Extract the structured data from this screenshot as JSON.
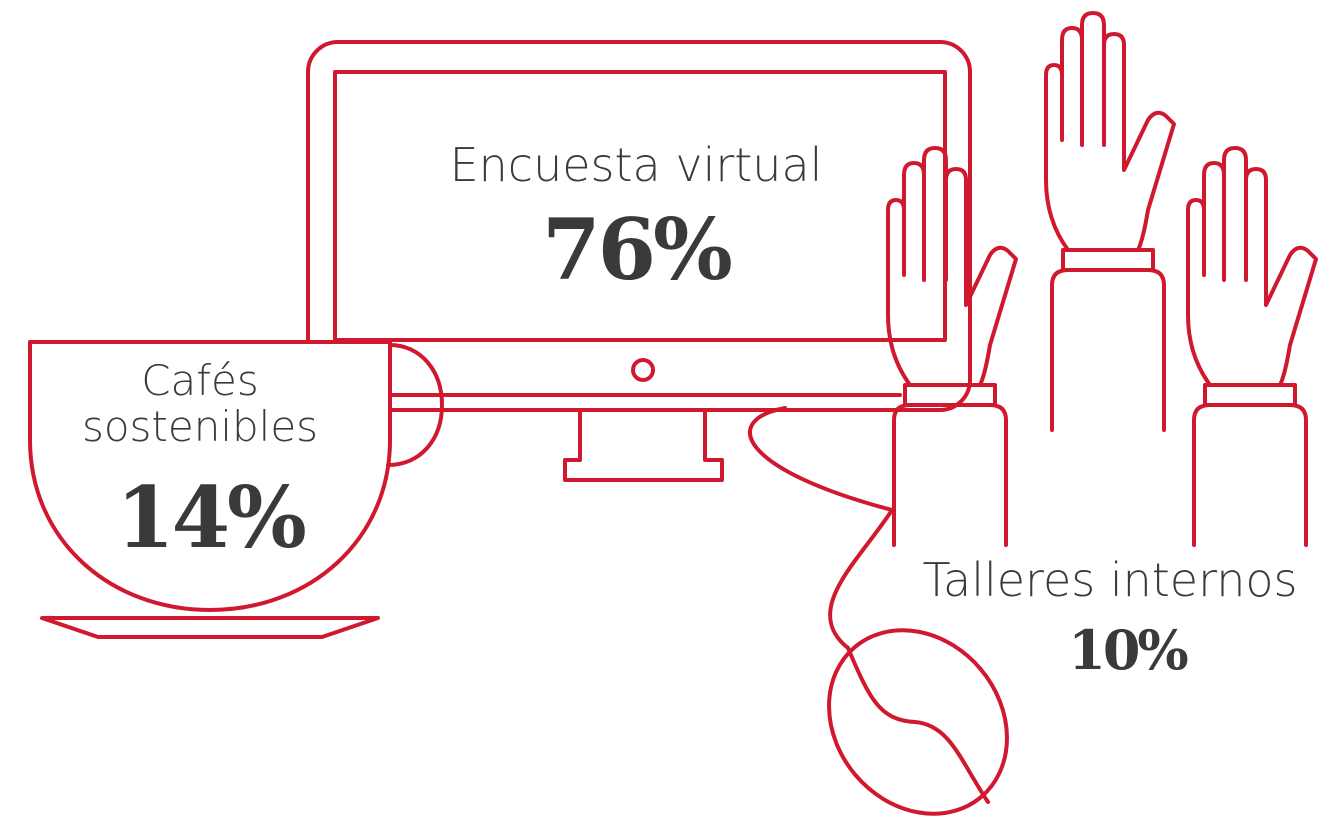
{
  "items": [
    {
      "label": "Encuesta virtual",
      "value": "76%"
    },
    {
      "label": "Cafés sostenibles",
      "value": "14%"
    },
    {
      "label": "Talleres internos",
      "value": "10%"
    }
  ]
}
